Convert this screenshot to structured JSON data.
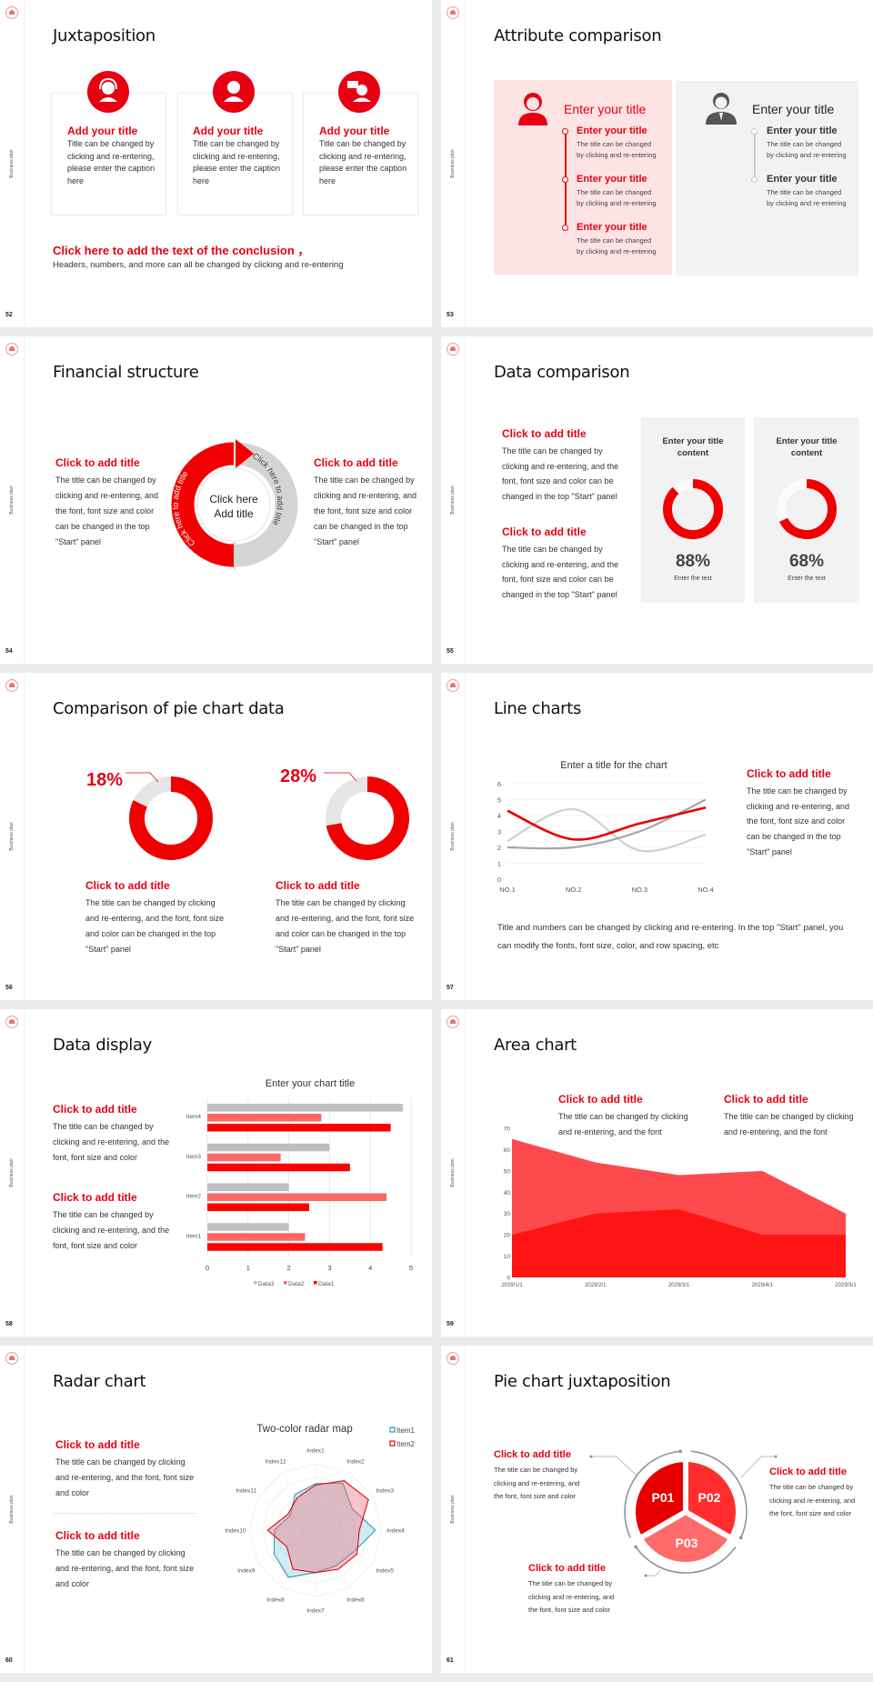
{
  "side_label": "Business plan",
  "colors": {
    "red": "#e60012",
    "bright_red": "#ff0000",
    "light_red": "#ff6666",
    "gray": "#bfbfbf",
    "pink_panel": "#fde3e4",
    "gray_panel": "#f2f2f2"
  },
  "slides": [
    {
      "number": "52",
      "title": "Juxtaposition",
      "cards": [
        {
          "icon": "customer-service-headset-icon",
          "title": "Add your title",
          "body": "Title can be changed by clicking and re-entering, please enter the caption here"
        },
        {
          "icon": "female-staff-icon",
          "title": "Add your title",
          "body": "Title can be changed by clicking and re-entering, please enter the caption here"
        },
        {
          "icon": "consultant-chat-icon",
          "title": "Add your title",
          "body": "Title can be changed by clicking and re-entering, please enter the caption here"
        }
      ],
      "conclusion_title": "Click here to add the text of the conclusion ，",
      "conclusion_body": "Headers, numbers, and more can all be changed by clicking and re-entering"
    },
    {
      "number": "53",
      "title": "Attribute comparison",
      "left_panel": {
        "icon": "female-user-icon",
        "heading": "Enter your title",
        "items": [
          {
            "title": "Enter your title",
            "line1": "The title can be changed",
            "line2": "by clicking and re-entering"
          },
          {
            "title": "Enter your title",
            "line1": "The title can be changed",
            "line2": "by clicking and re-entering"
          },
          {
            "title": "Enter your title",
            "line1": "The title can be changed",
            "line2": "by clicking and re-entering"
          }
        ]
      },
      "right_panel": {
        "icon": "male-user-icon",
        "heading": "Enter your title",
        "items": [
          {
            "title": "Enter your title",
            "line1": "The title can be changed",
            "line2": "by clicking and re-entering"
          },
          {
            "title": "Enter your title",
            "line1": "The title can be changed",
            "line2": "by clicking and re-entering"
          }
        ]
      }
    },
    {
      "number": "54",
      "title": "Financial structure",
      "left": {
        "title": "Click to add title",
        "body": "The title can be changed by clicking and re-entering, and the font, font size and color can be changed in the top \"Start\" panel"
      },
      "right": {
        "title": "Click to add title",
        "body": "The title can be changed by clicking and re-entering, and the font, font size and color can be changed in the top \"Start\" panel"
      },
      "cycle": {
        "red_arc_text": "Click here to add title",
        "gray_arc_text": "Click here to add title",
        "center_line1": "Click here",
        "center_line2": "Add title"
      }
    },
    {
      "number": "55",
      "title": "Data comparison",
      "blocks": [
        {
          "title": "Click to add title",
          "body": "The title can be changed by clicking and re-entering, and the font, font size and color can be changed in the top \"Start\" panel"
        },
        {
          "title": "Click to add title",
          "body": "The title can be changed by clicking and re-entering, and the font, font size and color can be changed in the top \"Start\" panel"
        }
      ],
      "cards": [
        {
          "title_line1": "Enter your title",
          "title_line2": "content",
          "percent": 88,
          "percent_label": "88%",
          "caption": "Enter the text"
        },
        {
          "title_line1": "Enter your title",
          "title_line2": "content",
          "percent": 68,
          "percent_label": "68%",
          "caption": "Enter the text"
        }
      ]
    },
    {
      "number": "56",
      "title": "Comparison of pie chart data",
      "pies": [
        {
          "percent": 18,
          "label": "18%",
          "title": "Click to add title",
          "body": "The title can be changed by clicking and re-entering, and the font, font size and color can be changed in the top \"Start\" panel"
        },
        {
          "percent": 28,
          "label": "28%",
          "title": "Click to add title",
          "body": "The title can be changed by clicking and re-entering, and the font, font size and color can be changed in the top \"Start\" panel"
        }
      ]
    },
    {
      "number": "57",
      "title": "Line charts",
      "side": {
        "title": "Click to add title",
        "body": "The title can be changed by clicking and re-entering, and the font, font size and color can be changed in the top \"Start\" panel"
      },
      "footer": "Title and numbers can be changed by clicking and re-entering. In the top \"Start\" panel, you can modify the fonts, font size, color, and row spacing, etc"
    },
    {
      "number": "58",
      "title": "Data display",
      "blocks": [
        {
          "title": "Click to add title",
          "body": "The title can be changed by clicking and re-entering, and the font, font size and color"
        },
        {
          "title": "Click to add title",
          "body": "The title can be changed by clicking and re-entering, and the font, font size and color"
        }
      ]
    },
    {
      "number": "59",
      "title": "Area chart",
      "blocks": [
        {
          "title": "Click to add title",
          "body": "The title can be changed by clicking and re-entering, and the font"
        },
        {
          "title": "Click to add title",
          "body": "The title can be changed by clicking and re-entering, and the font"
        }
      ]
    },
    {
      "number": "60",
      "title": "Radar chart",
      "blocks": [
        {
          "title": "Click to add title",
          "body": "The title can be changed by clicking and re-entering, and the font, font size and color"
        },
        {
          "title": "Click to add title",
          "body": "The title can be changed by clicking and re-entering, and the font, font size and color"
        }
      ]
    },
    {
      "number": "61",
      "title": "Pie chart juxtaposition",
      "segments": [
        "P01",
        "P02",
        "P03"
      ],
      "blocks": [
        {
          "title": "Click to add title",
          "body": "The title can be changed by clicking and re-entering, and the font, font size and color"
        },
        {
          "title": "Click to add title",
          "body": "The title can be changed by clicking and re-entering, and the font, font size and color"
        },
        {
          "title": "Click to add title",
          "body": "The title can be changed by clicking and re-entering, and the font, font size and color"
        }
      ]
    }
  ],
  "chart_data": [
    {
      "type": "line",
      "title": "Enter a title for the chart",
      "categories": [
        "NO.1",
        "NO.2",
        "NO.3",
        "NO.4"
      ],
      "ylim": [
        0,
        6
      ],
      "yticks": [
        0,
        1,
        2,
        3,
        4,
        5,
        6
      ],
      "grid": true,
      "smooth": true,
      "series": [
        {
          "color": "#d0d0d0",
          "values": [
            2.4,
            4.4,
            1.8,
            2.8
          ]
        },
        {
          "color": "#a6a6a6",
          "values": [
            2.0,
            2.0,
            3.0,
            5.0
          ]
        },
        {
          "color": "#e60000",
          "values": [
            4.3,
            2.5,
            3.5,
            4.5
          ]
        }
      ]
    },
    {
      "type": "bar",
      "orientation": "horizontal",
      "title": "Enter your chart title",
      "categories": [
        "Item1",
        "Item2",
        "Item3",
        "Item4"
      ],
      "xlim": [
        0,
        5
      ],
      "xticks": [
        0,
        1,
        2,
        3,
        4,
        5
      ],
      "grid": true,
      "legend": "bottom",
      "series": [
        {
          "name": "Data3",
          "color": "#bfbfbf",
          "values": [
            2.0,
            2.0,
            3.0,
            4.8
          ]
        },
        {
          "name": "Data2",
          "color": "#ff6666",
          "values": [
            2.4,
            4.4,
            1.8,
            2.8
          ]
        },
        {
          "name": "Data1",
          "color": "#ff0000",
          "values": [
            4.3,
            2.5,
            3.5,
            4.5
          ]
        }
      ]
    },
    {
      "type": "area",
      "categories": [
        "2029/1/1",
        "2029/2/1",
        "2029/3/1",
        "2029/4/1",
        "2029/5/1"
      ],
      "ylim": [
        0,
        70
      ],
      "yticks": [
        0,
        10,
        20,
        30,
        40,
        50,
        60,
        70
      ],
      "series": [
        {
          "color": "#ff4a4d",
          "values": [
            65,
            54,
            48,
            50,
            30
          ]
        },
        {
          "color": "#ff1414",
          "values": [
            20,
            30,
            32,
            20,
            20
          ]
        }
      ]
    },
    {
      "type": "radar",
      "title": "Two-color radar map",
      "legend": "top-right",
      "categories": [
        "Index1",
        "Index2",
        "Index3",
        "Index4",
        "Index5",
        "Index6",
        "Index7",
        "Index8",
        "Index9",
        "Index10",
        "Index11",
        "Index12"
      ],
      "rmax": 5,
      "series": [
        {
          "name": "Item1",
          "color": "#2a9bb5",
          "fill": "rgba(120,200,225,0.35)",
          "values": [
            3.5,
            4.1,
            3.2,
            4.5,
            3.3,
            3.1,
            3.2,
            4.1,
            3.6,
            3.1,
            2.2,
            3.1
          ]
        },
        {
          "name": "Item2",
          "color": "#e60012",
          "fill": "rgba(240,110,120,0.4)",
          "values": [
            3.4,
            4.3,
            4.6,
            3.3,
            3.6,
            3.4,
            3.2,
            3.4,
            2.5,
            3.6,
            2.4,
            2.8
          ]
        }
      ]
    }
  ]
}
